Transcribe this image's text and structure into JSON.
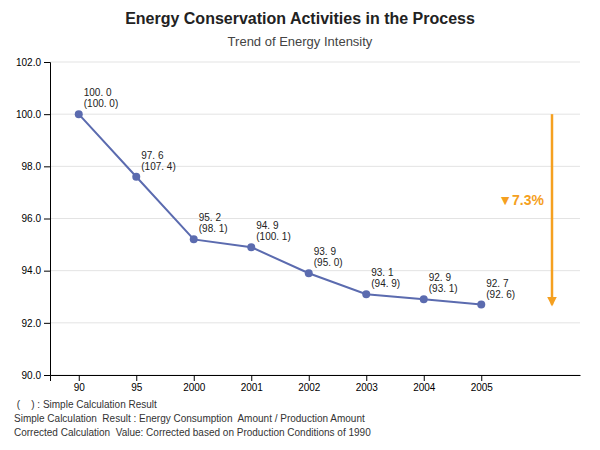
{
  "chart_data": {
    "type": "line",
    "title": "Energy Conservation Activities in the Process",
    "subtitle": "Trend of Energy Intensity",
    "categories": [
      "90",
      "95",
      "2000",
      "2001",
      "2002",
      "2003",
      "2004",
      "2005"
    ],
    "values": [
      100.0,
      97.6,
      95.2,
      94.9,
      93.9,
      93.1,
      92.9,
      92.7
    ],
    "value_labels": [
      "100. 0",
      "97. 6",
      "95. 2",
      "94. 9",
      "93. 9",
      "93. 1",
      "92. 9",
      "92. 7"
    ],
    "point_labels": [
      "(100. 0)",
      "(107. 4)",
      "(98. 1)",
      "(100. 1)",
      "(95. 0)",
      "(94. 9)",
      "(93. 1)",
      "(92. 6)"
    ],
    "data_labels": true,
    "color": "#5B6BAF",
    "marker": "circle",
    "ylim": [
      90.0,
      102.0
    ],
    "yticks": [
      {
        "value": 90.0,
        "label": "90.0"
      },
      {
        "value": 92.0,
        "label": "92.0"
      },
      {
        "value": 94.0,
        "label": "94.0"
      },
      {
        "value": 96.0,
        "label": "96.0"
      },
      {
        "value": 98.0,
        "label": "98.0"
      },
      {
        "value": 100.0,
        "label": "100.0"
      },
      {
        "value": 102.0,
        "label": "102.0"
      }
    ],
    "grid": true,
    "annotations": [
      {
        "text": "▼7.3%",
        "color": "#F5A020"
      }
    ],
    "footnotes": [
      " (    ) : Simple Calculation Result",
      "Simple Calculation  Result : Energy Consumption  Amount / Production Amount",
      "Corrected Calculation  Value: Corrected based on Production Conditions of 1990"
    ]
  }
}
